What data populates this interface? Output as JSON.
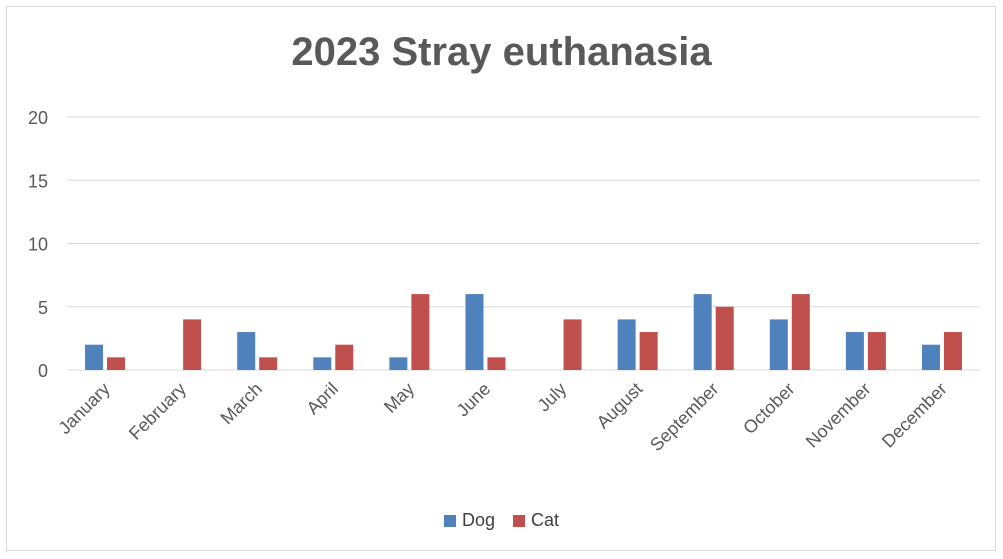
{
  "chart_data": {
    "type": "bar",
    "title": "2023 Stray euthanasia",
    "categories": [
      "January",
      "February",
      "March",
      "April",
      "May",
      "June",
      "July",
      "August",
      "September",
      "October",
      "November",
      "December"
    ],
    "series": [
      {
        "name": "Dog",
        "color": "#4f81bd",
        "values": [
          2,
          0,
          3,
          1,
          1,
          6,
          0,
          4,
          6,
          4,
          3,
          2
        ]
      },
      {
        "name": "Cat",
        "color": "#c0504d",
        "values": [
          1,
          4,
          1,
          2,
          6,
          1,
          4,
          3,
          5,
          6,
          3,
          3
        ]
      }
    ],
    "yticks": [
      "0",
      "5",
      "10",
      "15",
      "20"
    ],
    "ylim": [
      0,
      20
    ],
    "grid": true,
    "legend": "bottom"
  }
}
